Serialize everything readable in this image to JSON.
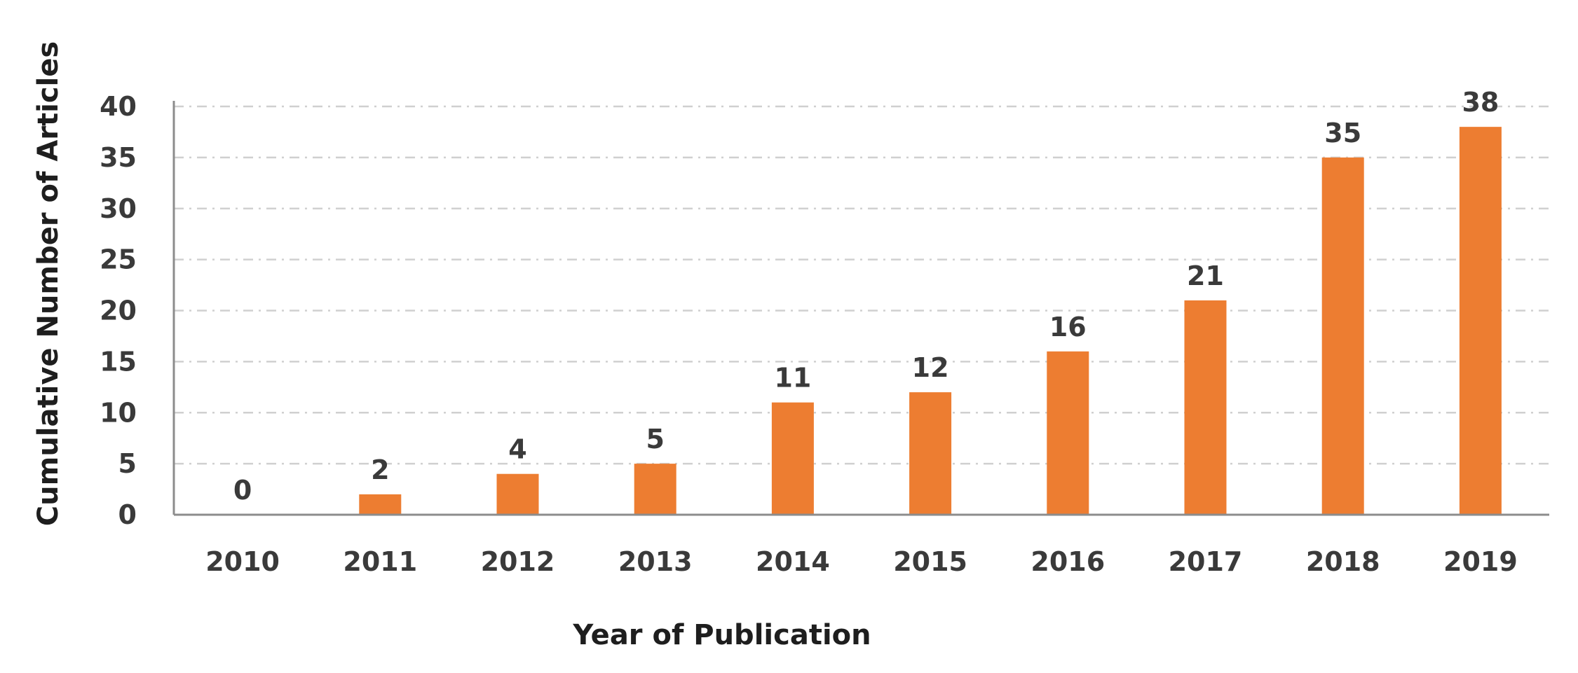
{
  "chart_data": {
    "type": "bar",
    "title": "",
    "xlabel": "Year of Publication",
    "ylabel": "Cumulative Number of Articles",
    "categories": [
      "2010",
      "2011",
      "2012",
      "2013",
      "2014",
      "2015",
      "2016",
      "2017",
      "2018",
      "2019"
    ],
    "values": [
      0,
      2,
      4,
      5,
      11,
      12,
      16,
      21,
      35,
      38
    ],
    "y_ticks": [
      "0",
      "5",
      "10",
      "15",
      "20",
      "25",
      "30",
      "35",
      "40"
    ],
    "ylim": [
      0,
      40
    ],
    "grid": true,
    "legend": "none",
    "data_labels": true,
    "bar_color": "#ED7D31",
    "grid_color": "#D0D0D0",
    "axis_color": "#8C8C8C"
  }
}
